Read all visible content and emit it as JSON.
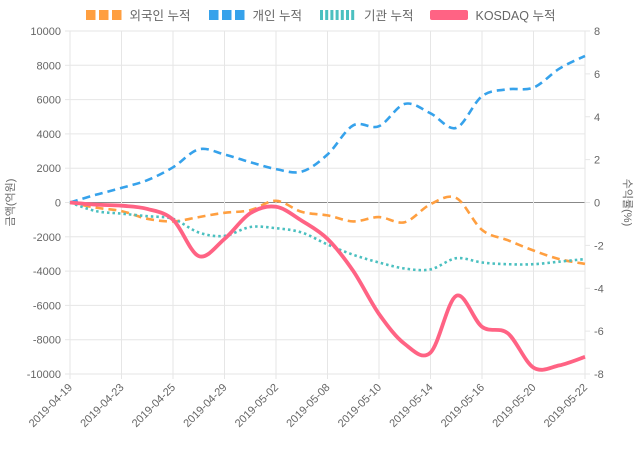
{
  "chart_data": {
    "type": "line",
    "x_tick_labels": [
      "2019-04-19",
      "2019-04-23",
      "2019-04-25",
      "2019-04-29",
      "2019-05-02",
      "2019-05-08",
      "2019-05-10",
      "2019-05-14",
      "2019-05-16",
      "2019-05-20",
      "2019-05-22"
    ],
    "x_tick_every_n_points": 2,
    "n_points": 21,
    "y_axis_left": {
      "title": "금액(억원)",
      "min": -10000,
      "max": 10000,
      "step": 2000,
      "ticks": [
        10000,
        8000,
        6000,
        4000,
        2000,
        0,
        -2000,
        -4000,
        -6000,
        -8000,
        -10000
      ]
    },
    "y_axis_right": {
      "title": "수익률(%)",
      "min": -8,
      "max": 8,
      "step": 2,
      "ticks": [
        8,
        6,
        4,
        2,
        0,
        -2,
        -4,
        -6,
        -8
      ]
    },
    "series": [
      {
        "name": "외국인 누적",
        "axis": "left",
        "color": "#ff9f40",
        "line_style": "dashed",
        "values": [
          0,
          -300,
          -500,
          -950,
          -1100,
          -850,
          -600,
          -450,
          100,
          -550,
          -750,
          -1100,
          -850,
          -1150,
          -100,
          260,
          -1600,
          -2200,
          -2800,
          -3300,
          -3580
        ]
      },
      {
        "name": "개인 누적",
        "axis": "left",
        "color": "#36a2eb",
        "line_style": "dashed",
        "values": [
          0,
          450,
          850,
          1300,
          2050,
          3100,
          2800,
          2350,
          1950,
          1800,
          2800,
          4500,
          4450,
          5750,
          5200,
          4350,
          6200,
          6600,
          6700,
          7800,
          8550
        ]
      },
      {
        "name": "기관 누적",
        "axis": "left",
        "color": "#4bc0c0",
        "line_style": "dotted",
        "values": [
          0,
          -500,
          -650,
          -800,
          -950,
          -1750,
          -1950,
          -1430,
          -1500,
          -1750,
          -2450,
          -3050,
          -3500,
          -3850,
          -3900,
          -3250,
          -3500,
          -3600,
          -3600,
          -3450,
          -3300
        ]
      },
      {
        "name": "KOSDAQ 누적",
        "axis": "right",
        "color": "#ff6384",
        "line_style": "solid",
        "values": [
          0,
          -0.1,
          -0.15,
          -0.3,
          -0.8,
          -2.5,
          -1.7,
          -0.5,
          -0.2,
          -0.85,
          -1.7,
          -3.2,
          -5.2,
          -6.6,
          -7.0,
          -4.35,
          -5.8,
          -6.1,
          -7.7,
          -7.6,
          -7.2
        ]
      }
    ],
    "grid": true,
    "legend_position": "top"
  },
  "colors": {
    "background": "#ffffff",
    "grid": "#e6e6e6",
    "zero_line": "#888888",
    "tick_text": "#666666",
    "axis_title_text": "#666666",
    "legend_text": "#666666"
  }
}
